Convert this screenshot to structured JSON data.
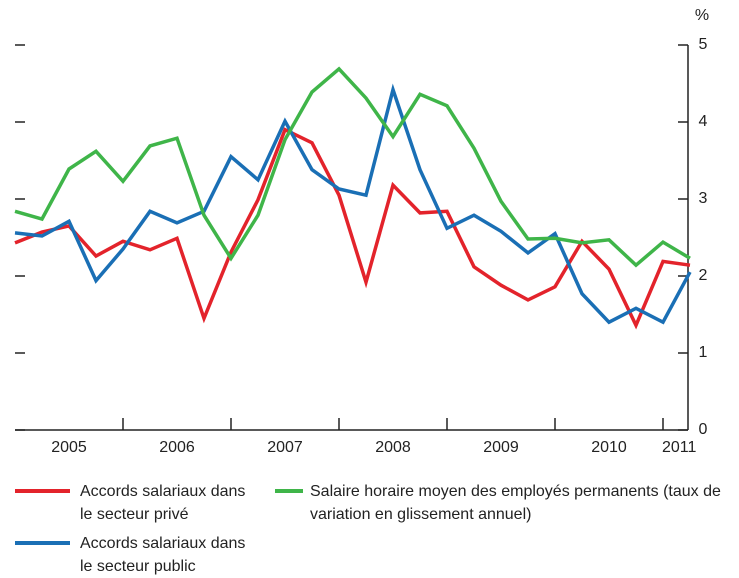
{
  "chart_data": {
    "type": "line",
    "y_unit": "%",
    "x": [
      2005,
      2005.25,
      2005.5,
      2005.75,
      2006,
      2006.25,
      2006.5,
      2006.75,
      2007,
      2007.25,
      2007.5,
      2007.75,
      2008,
      2008.25,
      2008.5,
      2008.75,
      2009,
      2009.25,
      2009.5,
      2009.75,
      2010,
      2010.25,
      2010.5,
      2010.75,
      2011,
      2011.25
    ],
    "xlim": [
      2005,
      2011.25
    ],
    "xticks": [
      2006,
      2007,
      2008,
      2009,
      2010,
      2011
    ],
    "xtick_labels": [
      {
        "value": 2005.5,
        "label": "2005"
      },
      {
        "value": 2006.5,
        "label": "2006"
      },
      {
        "value": 2007.5,
        "label": "2007"
      },
      {
        "value": 2008.5,
        "label": "2008"
      },
      {
        "value": 2009.5,
        "label": "2009"
      },
      {
        "value": 2010.5,
        "label": "2010"
      },
      {
        "value": 2011.15,
        "label": "2011"
      }
    ],
    "ylim": [
      0,
      5
    ],
    "yticks": [
      0,
      1,
      2,
      3,
      4,
      5
    ],
    "series": [
      {
        "name": "Accords salariaux dans le secteur privé",
        "color": "#e3232b",
        "values": [
          2.43,
          2.57,
          2.65,
          2.26,
          2.45,
          2.34,
          2.49,
          1.45,
          2.31,
          2.99,
          3.9,
          3.73,
          3.05,
          1.92,
          3.18,
          2.82,
          2.84,
          2.12,
          1.88,
          1.69,
          1.86,
          2.45,
          2.09,
          1.36,
          2.19,
          2.14
        ]
      },
      {
        "name": "Accords salariaux dans le secteur public",
        "color": "#1a6fb5",
        "values": [
          2.56,
          2.52,
          2.71,
          1.94,
          2.35,
          2.84,
          2.69,
          2.84,
          3.55,
          3.25,
          4.01,
          3.38,
          3.13,
          3.05,
          4.42,
          3.38,
          2.62,
          2.79,
          2.58,
          2.3,
          2.55,
          1.77,
          1.4,
          1.58,
          1.4,
          2.05
        ]
      },
      {
        "name": "Salaire horaire moyen des employés permanents (taux de variation en glissement annuel)",
        "color": "#3fb549",
        "values": [
          2.84,
          2.74,
          3.39,
          3.62,
          3.23,
          3.69,
          3.79,
          2.79,
          2.23,
          2.79,
          3.77,
          4.39,
          4.69,
          4.31,
          3.81,
          4.36,
          4.21,
          3.66,
          2.97,
          2.48,
          2.49,
          2.43,
          2.47,
          2.14,
          2.44,
          2.23
        ]
      }
    ]
  }
}
